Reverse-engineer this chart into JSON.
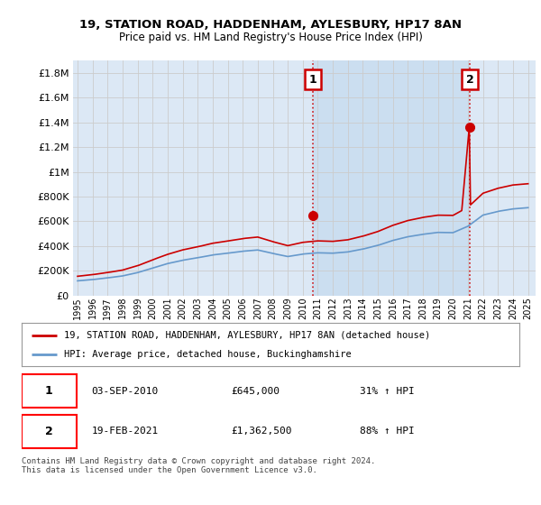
{
  "title1": "19, STATION ROAD, HADDENHAM, AYLESBURY, HP17 8AN",
  "title2": "Price paid vs. HM Land Registry's House Price Index (HPI)",
  "ylabel_ticks": [
    "£0",
    "£200K",
    "£400K",
    "£600K",
    "£800K",
    "£1M",
    "£1.2M",
    "£1.4M",
    "£1.6M",
    "£1.8M"
  ],
  "ytick_values": [
    0,
    200000,
    400000,
    600000,
    800000,
    1000000,
    1200000,
    1400000,
    1600000,
    1800000
  ],
  "ylim": [
    0,
    1900000
  ],
  "xlim_start": 1995.0,
  "xlim_end": 2025.5,
  "hpi_color": "#6699cc",
  "property_color": "#cc0000",
  "grid_color": "#cccccc",
  "bg_color": "#dce8f5",
  "highlight_color": "#c8ddf0",
  "sale1_x": 2010.67,
  "sale1_y": 645000,
  "sale2_x": 2021.12,
  "sale2_y": 1362500,
  "legend_label1": "19, STATION ROAD, HADDENHAM, AYLESBURY, HP17 8AN (detached house)",
  "legend_label2": "HPI: Average price, detached house, Buckinghamshire",
  "annot1_label": "1",
  "annot2_label": "2",
  "table_row1": [
    "1",
    "03-SEP-2010",
    "£645,000",
    "31% ↑ HPI"
  ],
  "table_row2": [
    "2",
    "19-FEB-2021",
    "£1,362,500",
    "88% ↑ HPI"
  ],
  "footer": "Contains HM Land Registry data © Crown copyright and database right 2024.\nThis data is licensed under the Open Government Licence v3.0."
}
